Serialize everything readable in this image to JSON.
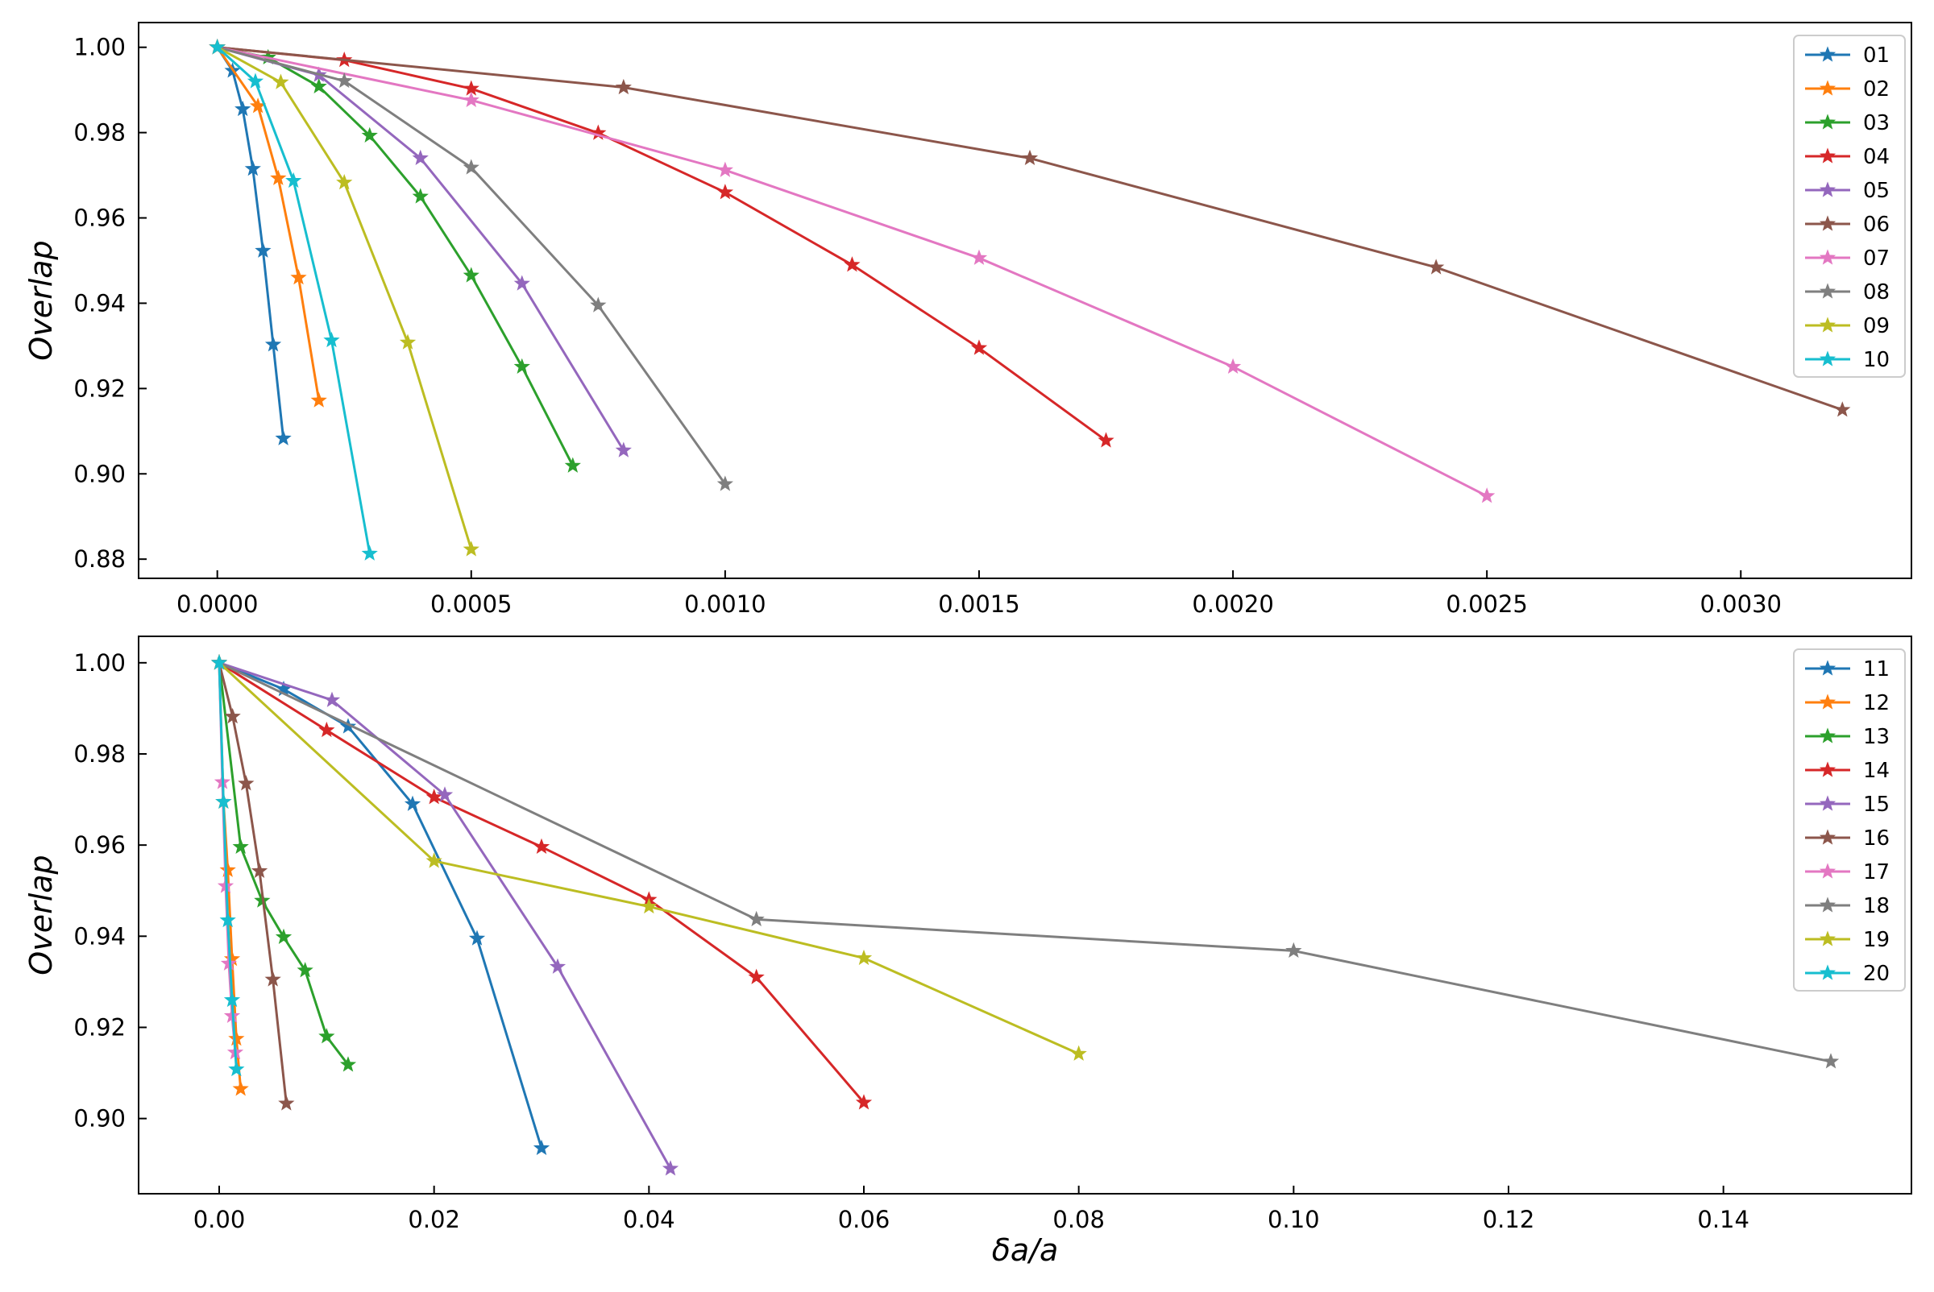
{
  "chart_data": [
    {
      "type": "line",
      "xlabel": "",
      "ylabel": "Overlap",
      "xlim": [
        -0.000155,
        0.003336
      ],
      "ylim": [
        0.8755,
        1.0058
      ],
      "xticks": [
        0.0,
        0.0005,
        0.001,
        0.0015,
        0.002,
        0.0025,
        0.003
      ],
      "xtick_labels": [
        "0.0000",
        "0.0005",
        "0.0010",
        "0.0015",
        "0.0020",
        "0.0025",
        "0.0030"
      ],
      "yticks": [
        0.88,
        0.9,
        0.92,
        0.94,
        0.96,
        0.98,
        1.0
      ],
      "ytick_labels": [
        "0.88",
        "0.90",
        "0.92",
        "0.94",
        "0.96",
        "0.98",
        "1.00"
      ],
      "marker": "star",
      "legend_position": "upper right",
      "grid": false,
      "series": [
        {
          "name": "01",
          "color": "#1f77b4",
          "x": [
            0.0,
            3e-05,
            5e-05,
            7e-05,
            9e-05,
            0.00011,
            0.00013
          ],
          "y": [
            1.0,
            0.9945,
            0.9855,
            0.9715,
            0.9523,
            0.9303,
            0.9083
          ]
        },
        {
          "name": "02",
          "color": "#ff7f0e",
          "x": [
            0.0,
            8e-05,
            0.00012,
            0.00016,
            0.0002
          ],
          "y": [
            1.0,
            0.9862,
            0.9693,
            0.946,
            0.9172
          ]
        },
        {
          "name": "03",
          "color": "#2ca02c",
          "x": [
            0.0,
            0.0001,
            0.0002,
            0.0003,
            0.0004,
            0.0005,
            0.0006,
            0.0007
          ],
          "y": [
            1.0,
            0.9976,
            0.9908,
            0.9793,
            0.965,
            0.9465,
            0.9251,
            0.9019
          ]
        },
        {
          "name": "04",
          "color": "#d62728",
          "x": [
            0.0,
            0.00025,
            0.0005,
            0.00075,
            0.001,
            0.00125,
            0.0015,
            0.00175
          ],
          "y": [
            1.0,
            0.997,
            0.9903,
            0.9799,
            0.966,
            0.949,
            0.9295,
            0.9078
          ]
        },
        {
          "name": "05",
          "color": "#9467bd",
          "x": [
            0.0,
            0.0002,
            0.0004,
            0.0006,
            0.0008
          ],
          "y": [
            1.0,
            0.9935,
            0.974,
            0.9446,
            0.9055
          ]
        },
        {
          "name": "06",
          "color": "#8c564b",
          "x": [
            0.0,
            0.0008,
            0.0016,
            0.0024,
            0.0032
          ],
          "y": [
            1.0,
            0.9906,
            0.974,
            0.9484,
            0.915
          ]
        },
        {
          "name": "07",
          "color": "#e377c2",
          "x": [
            0.0,
            0.0005,
            0.001,
            0.0015,
            0.002,
            0.0025
          ],
          "y": [
            1.0,
            0.9876,
            0.9712,
            0.9506,
            0.9251,
            0.8948
          ]
        },
        {
          "name": "08",
          "color": "#7f7f7f",
          "x": [
            0.0,
            0.00025,
            0.0005,
            0.00075,
            0.001
          ],
          "y": [
            1.0,
            0.9921,
            0.9718,
            0.9395,
            0.8976
          ]
        },
        {
          "name": "09",
          "color": "#bcbd22",
          "x": [
            0.0,
            0.000125,
            0.00025,
            0.000375,
            0.0005
          ],
          "y": [
            1.0,
            0.9918,
            0.9683,
            0.9308,
            0.8823
          ]
        },
        {
          "name": "10",
          "color": "#17becf",
          "x": [
            0.0,
            7.5e-05,
            0.00015,
            0.000225,
            0.0003
          ],
          "y": [
            1.0,
            0.992,
            0.9687,
            0.9313,
            0.8813
          ]
        }
      ]
    },
    {
      "type": "line",
      "xlabel": "δa/a",
      "ylabel": "Overlap",
      "xlim": [
        -0.0075,
        0.1575
      ],
      "ylim": [
        0.8835,
        1.0058
      ],
      "xticks": [
        0.0,
        0.02,
        0.04,
        0.06,
        0.08,
        0.1,
        0.12,
        0.14
      ],
      "xtick_labels": [
        "0.00",
        "0.02",
        "0.04",
        "0.06",
        "0.08",
        "0.10",
        "0.12",
        "0.14"
      ],
      "yticks": [
        0.9,
        0.92,
        0.94,
        0.96,
        0.98,
        1.0
      ],
      "ytick_labels": [
        "0.90",
        "0.92",
        "0.94",
        "0.96",
        "0.98",
        "1.00"
      ],
      "marker": "star",
      "legend_position": "upper right",
      "grid": false,
      "series": [
        {
          "name": "11",
          "color": "#1f77b4",
          "x": [
            0.0,
            0.006,
            0.012,
            0.018,
            0.024,
            0.03
          ],
          "y": [
            1.0,
            0.9942,
            0.986,
            0.969,
            0.9395,
            0.8935
          ]
        },
        {
          "name": "12",
          "color": "#ff7f0e",
          "x": [
            0.0,
            0.0004,
            0.0008,
            0.0012,
            0.0016,
            0.002
          ],
          "y": [
            1.0,
            0.9695,
            0.9545,
            0.935,
            0.9175,
            0.9065
          ]
        },
        {
          "name": "13",
          "color": "#2ca02c",
          "x": [
            0.0,
            0.002,
            0.004,
            0.006,
            0.008,
            0.01,
            0.012
          ],
          "y": [
            1.0,
            0.9596,
            0.9478,
            0.9398,
            0.9325,
            0.918,
            0.9118
          ]
        },
        {
          "name": "14",
          "color": "#d62728",
          "x": [
            0.0,
            0.01,
            0.02,
            0.03,
            0.04,
            0.05,
            0.06
          ],
          "y": [
            1.0,
            0.9852,
            0.9705,
            0.9596,
            0.948,
            0.931,
            0.9035
          ]
        },
        {
          "name": "15",
          "color": "#9467bd",
          "x": [
            0.0,
            0.0105,
            0.021,
            0.0315,
            0.042
          ],
          "y": [
            1.0,
            0.9918,
            0.971,
            0.9333,
            0.889
          ]
        },
        {
          "name": "16",
          "color": "#8c564b",
          "x": [
            0.0,
            0.00125,
            0.0025,
            0.00375,
            0.005,
            0.00625
          ],
          "y": [
            1.0,
            0.9882,
            0.9735,
            0.9543,
            0.9305,
            0.9033
          ]
        },
        {
          "name": "17",
          "color": "#e377c2",
          "x": [
            0.0,
            0.0003,
            0.0006,
            0.0009,
            0.0012,
            0.0015
          ],
          "y": [
            1.0,
            0.9738,
            0.951,
            0.934,
            0.9225,
            0.9145
          ]
        },
        {
          "name": "18",
          "color": "#7f7f7f",
          "x": [
            0.0,
            0.05,
            0.1,
            0.15
          ],
          "y": [
            1.0,
            0.9437,
            0.9368,
            0.9125
          ]
        },
        {
          "name": "19",
          "color": "#bcbd22",
          "x": [
            0.0,
            0.02,
            0.04,
            0.06,
            0.08
          ],
          "y": [
            1.0,
            0.9565,
            0.9465,
            0.9352,
            0.9142
          ]
        },
        {
          "name": "20",
          "color": "#17becf",
          "x": [
            0.0,
            0.0004,
            0.0008,
            0.0012,
            0.0016
          ],
          "y": [
            1.0,
            0.9695,
            0.9435,
            0.926,
            0.9108
          ]
        }
      ]
    }
  ]
}
